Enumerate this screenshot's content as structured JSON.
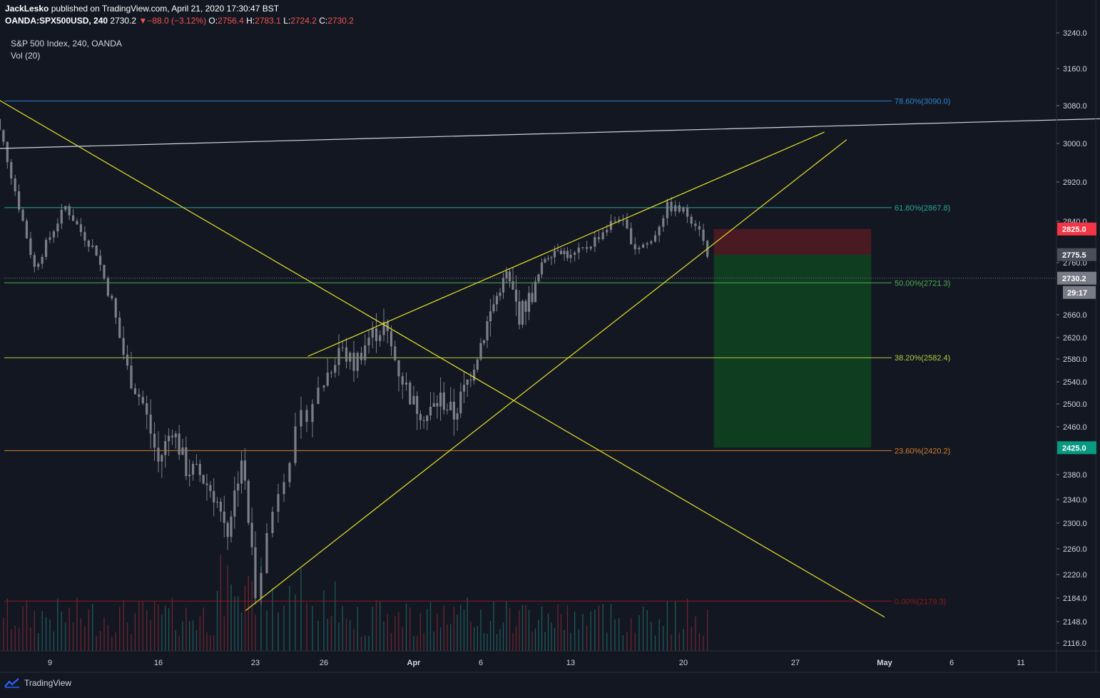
{
  "header": {
    "author": "JackLesko",
    "published": " published on TradingView.com, April 21, 2020 17:30:47 BST",
    "symbol": "OANDA:SPX500USD, 240",
    "last": "2730.2",
    "change": "−88.0 (−3.12%)",
    "o_label": "O:",
    "o": "2756.4",
    "h_label": "H:",
    "h": "2783.1",
    "l_label": "L:",
    "l": "2724.2",
    "c_label": "C:",
    "c": "2730.2"
  },
  "pane": {
    "title": "S&P 500 Index, 240, OANDA",
    "indicator": "Vol (20)"
  },
  "footer": {
    "brand": "TradingView"
  },
  "colors": {
    "background": "#131722",
    "candle": "#7c7f88",
    "trendline": "#e6e229",
    "fib_786": "#2e84cc",
    "fib_618": "#26a69a",
    "fib_50": "#4caf50",
    "fib_382": "#b9c83e",
    "fib_236": "#d17f28",
    "fib_0": "#8b1a1a",
    "stop_zone": "#4a1a22",
    "target_zone": "#0f3d1f",
    "vol_up": "#1e5a59",
    "vol_down": "#6b2530"
  },
  "chart_data": {
    "type": "candlestick",
    "title": "S&P 500 Index, 240, OANDA",
    "indicator": "Vol (20)",
    "ylim": [
      2095,
      3255
    ],
    "y_ticks": [
      {
        "value": 3240,
        "label": "3240.0"
      },
      {
        "value": 3160,
        "label": "3160.0"
      },
      {
        "value": 3080,
        "label": "3080.0"
      },
      {
        "value": 3000,
        "label": "3000.0"
      },
      {
        "value": 2920,
        "label": "2920.0"
      },
      {
        "value": 2840,
        "label": "2840.0"
      },
      {
        "value": 2760,
        "label": "2760.0"
      },
      {
        "value": 2660,
        "label": "2660.0"
      },
      {
        "value": 2620,
        "label": "2620.0"
      },
      {
        "value": 2580,
        "label": "2580.0"
      },
      {
        "value": 2540,
        "label": "2540.0"
      },
      {
        "value": 2500,
        "label": "2500.0"
      },
      {
        "value": 2460,
        "label": "2460.0"
      },
      {
        "value": 2380,
        "label": "2380.0"
      },
      {
        "value": 2340,
        "label": "2340.0"
      },
      {
        "value": 2300,
        "label": "2300.0"
      },
      {
        "value": 2260,
        "label": "2260.0"
      },
      {
        "value": 2220,
        "label": "2220.0"
      },
      {
        "value": 2184,
        "label": "2184.0"
      },
      {
        "value": 2148,
        "label": "2148.0"
      },
      {
        "value": 2116,
        "label": "2116.0"
      }
    ],
    "x_ticks": [
      {
        "day": 9,
        "label": "9"
      },
      {
        "day": 16,
        "label": "16"
      },
      {
        "day": 23,
        "label": "23"
      },
      {
        "day": 26,
        "label": "26"
      },
      {
        "day": 32,
        "label": "Apr"
      },
      {
        "day": 37,
        "label": "6"
      },
      {
        "day": 44,
        "label": "13"
      },
      {
        "day": 51,
        "label": "20"
      },
      {
        "day": 58,
        "label": "27"
      },
      {
        "day": 62,
        "label": "May"
      },
      {
        "day": 67,
        "label": "6"
      },
      {
        "day": 72,
        "label": "11"
      }
    ],
    "fib_levels": [
      {
        "price": 3090.0,
        "label": "78.60%(3090.0)",
        "color": "#2e84cc"
      },
      {
        "price": 2867.8,
        "label": "61.80%(2867.8)",
        "color": "#26a69a"
      },
      {
        "price": 2721.3,
        "label": "50.00%(2721.3)",
        "color": "#4caf50"
      },
      {
        "price": 2582.4,
        "label": "38.20%(2582.4)",
        "color": "#b9c83e"
      },
      {
        "price": 2420.2,
        "label": "23.60%(2420.2)",
        "color": "#d17f28"
      },
      {
        "price": 2179.3,
        "label": "0.00%(2179.3)",
        "color": "#8b1a1a"
      }
    ],
    "trendlines": [
      {
        "name": "descending",
        "from": [
          5,
          3106
        ],
        "to": [
          62,
          2155
        ],
        "color": "#e6e229"
      },
      {
        "name": "lower-support",
        "from": [
          22.3,
          2165
        ],
        "to": [
          60.3,
          3008
        ],
        "color": "#e6e229"
      },
      {
        "name": "upper-resistance",
        "from": [
          25.3,
          2585
        ],
        "to": [
          59.3,
          3024
        ],
        "color": "#ffffff"
      },
      {
        "name": "channel-top",
        "from": [
          5,
          2989
        ],
        "to": [
          80,
          3054
        ],
        "color": "#d1d4dc"
      }
    ],
    "position": {
      "type": "short",
      "stop": 2825.0,
      "entry": 2775.5,
      "target": 2425.0
    },
    "price_labels": [
      {
        "value": 2825.0,
        "label": "2825.0",
        "bg": "#f23645",
        "fg": "#ffffff"
      },
      {
        "value": 2775.5,
        "label": "2775.5",
        "bg": "#4a4e59",
        "fg": "#ffffff"
      },
      {
        "value": 2730.2,
        "label": "2730.2",
        "bg": "#787b86",
        "fg": "#ffffff"
      },
      {
        "value": 2425.0,
        "label": "2425.0",
        "bg": "#089981",
        "fg": "#ffffff"
      }
    ],
    "countdown": "29:17",
    "ohlc_waypoints": [
      [
        5,
        3100
      ],
      [
        6,
        3000
      ],
      [
        7,
        2870
      ],
      [
        8,
        2750
      ],
      [
        9,
        2810
      ],
      [
        10,
        2870
      ],
      [
        11,
        2820
      ],
      [
        12,
        2780
      ],
      [
        13,
        2680
      ],
      [
        14,
        2560
      ],
      [
        15,
        2500
      ],
      [
        16,
        2400
      ],
      [
        17,
        2460
      ],
      [
        18,
        2390
      ],
      [
        19,
        2380
      ],
      [
        20,
        2350
      ],
      [
        21,
        2290
      ],
      [
        22,
        2410
      ],
      [
        23,
        2200
      ],
      [
        24,
        2360
      ],
      [
        25,
        2470
      ],
      [
        26,
        2540
      ],
      [
        27,
        2600
      ],
      [
        28,
        2570
      ],
      [
        29,
        2620
      ],
      [
        30,
        2640
      ],
      [
        31,
        2560
      ],
      [
        32,
        2500
      ],
      [
        33,
        2480
      ],
      [
        34,
        2510
      ],
      [
        35,
        2480
      ],
      [
        36,
        2540
      ],
      [
        37,
        2610
      ],
      [
        38,
        2680
      ],
      [
        39,
        2740
      ],
      [
        40,
        2660
      ],
      [
        41,
        2700
      ],
      [
        42,
        2770
      ],
      [
        43,
        2790
      ],
      [
        44,
        2770
      ],
      [
        45,
        2790
      ],
      [
        46,
        2820
      ],
      [
        47,
        2850
      ],
      [
        48,
        2790
      ],
      [
        49,
        2800
      ],
      [
        50,
        2870
      ],
      [
        51,
        2860
      ],
      [
        52,
        2830
      ],
      [
        52.7,
        2745
      ]
    ]
  }
}
